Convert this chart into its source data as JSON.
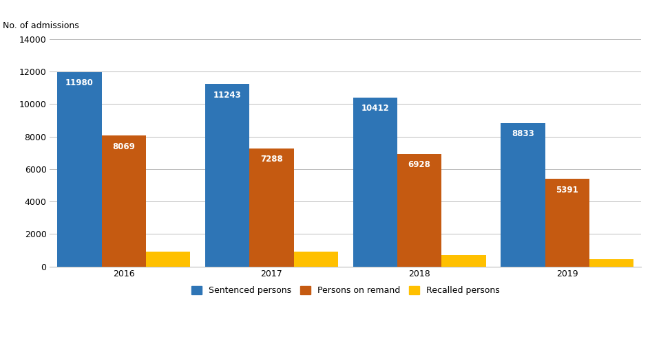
{
  "years": [
    "2016",
    "2017",
    "2018",
    "2019"
  ],
  "sentenced": [
    11980,
    11243,
    10412,
    8833
  ],
  "remand": [
    8069,
    7288,
    6928,
    5391
  ],
  "recalled": [
    932,
    931,
    714,
    465
  ],
  "sentenced_color": "#2E75B6",
  "remand_color": "#C55A11",
  "recalled_color": "#FFC000",
  "ylabel": "No. of admissions",
  "ylim": [
    0,
    14000
  ],
  "yticks": [
    0,
    2000,
    4000,
    6000,
    8000,
    10000,
    12000,
    14000
  ],
  "legend_labels": [
    "Sentenced persons",
    "Persons on remand",
    "Recalled persons"
  ],
  "bar_width": 0.3,
  "label_fontsize": 8.5,
  "axis_fontsize": 9,
  "background_color": "#ffffff",
  "text_color_white": "#ffffff",
  "text_color_recalled": "#FFC000"
}
